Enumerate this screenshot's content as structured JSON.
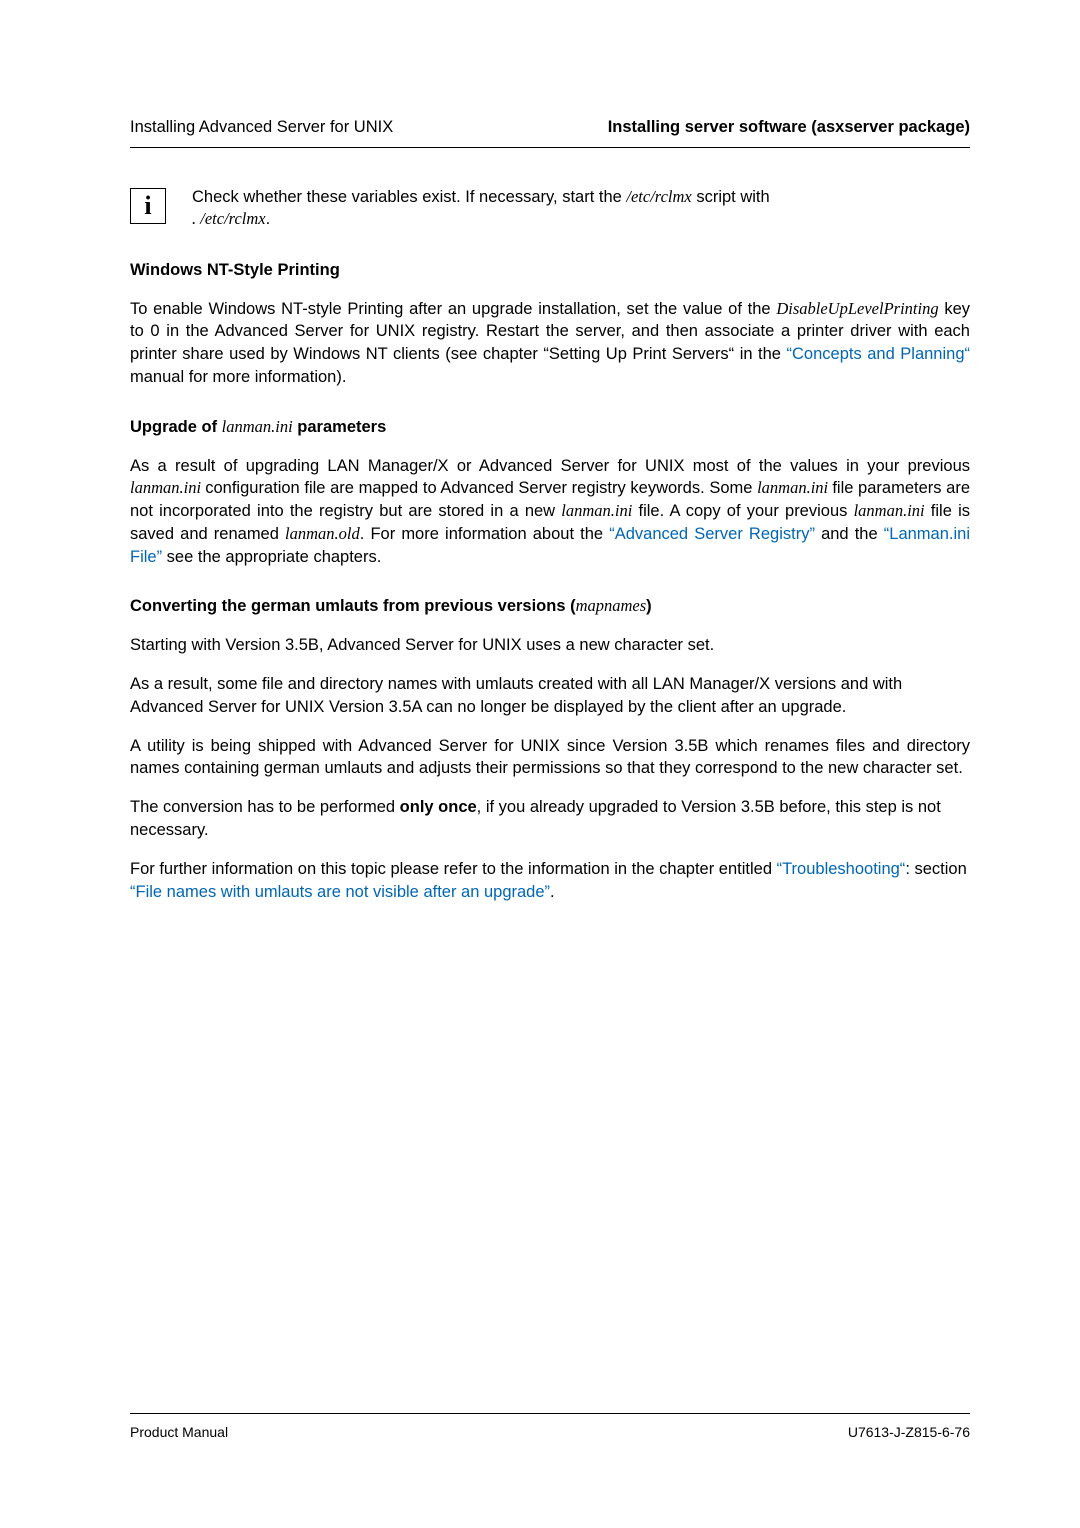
{
  "header": {
    "left": "Installing Advanced Server for UNIX",
    "right": "Installing server software (asxserver package)"
  },
  "info_box": {
    "icon_char": "i",
    "text_before": "Check whether these variables exist. If necessary, start the ",
    "script_path": "/etc/rclmx",
    "text_mid": " script with ",
    "cmd": ". /etc/rclmx",
    "text_after": "."
  },
  "sections": {
    "nt_printing": {
      "heading": "Windows NT-Style Printing",
      "p_a": "To enable Windows NT-style Printing after an upgrade installation, set the value of the ",
      "key": "DisableUpLevelPrinting",
      "p_b": " key to 0 in the Advanced Server for UNIX registry. Restart the server, and then associate a printer driver with each printer share used by Windows NT clients (see chapter “Setting Up Print Servers“ in the ",
      "link": "“Concepts and Planning“",
      "p_c": " manual for more information)."
    },
    "upgrade": {
      "heading_a": "Upgrade of ",
      "heading_file": "lanman.ini",
      "heading_b": " parameters",
      "p_a": "As a result of upgrading LAN Manager/X or Advanced Server for UNIX most of the values in your previous ",
      "f1": "lanman.ini ",
      "p_b": " configuration file are mapped to Advanced Server registry keywords. Some ",
      "f2": "lanman.ini ",
      "p_c": " file parameters are not incorporated into the registry but are stored in a new ",
      "f3": "lanman.ini",
      "p_d": " file. A copy of your previous ",
      "f4": "lanman.ini",
      "p_e": " file is saved and renamed ",
      "f5": "lanman.old",
      "p_f": ". For more information about the ",
      "link1": "“Advanced Server Registry”",
      "p_g": " and the ",
      "link2": "“Lanman.ini File”",
      "p_h": " see the appropriate chapters."
    },
    "umlauts": {
      "heading_a": "Converting the german umlauts from previous versions (",
      "heading_file": "mapnames",
      "heading_b": ")",
      "p1": "Starting with Version 3.5B, Advanced Server for UNIX uses a new character set.",
      "p2": "As a result, some file and directory names with umlauts created with all LAN Manager/X versions and with Advanced Server for UNIX Version 3.5A can no longer be displayed by the client after an upgrade.",
      "p3": "A utility is being shipped with Advanced Server for UNIX since Version 3.5B which renames files and directory names containing german umlauts and adjusts their permissions so that they correspond to the new character set.",
      "p4a": "The conversion has to be performed ",
      "p4bold": "only once",
      "p4b": ", if you already upgraded to Version 3.5B before, this step is not necessary.",
      "p5a": "For further information on this topic please refer to the information in the chapter entitled ",
      "link1": "“Troubleshooting“",
      "p5b": ": section ",
      "link2": "“File names with umlauts are not visible after an upgrade”",
      "p5c": "."
    }
  },
  "footer": {
    "left": "Product Manual",
    "right": "U7613-J-Z815-6-76"
  }
}
